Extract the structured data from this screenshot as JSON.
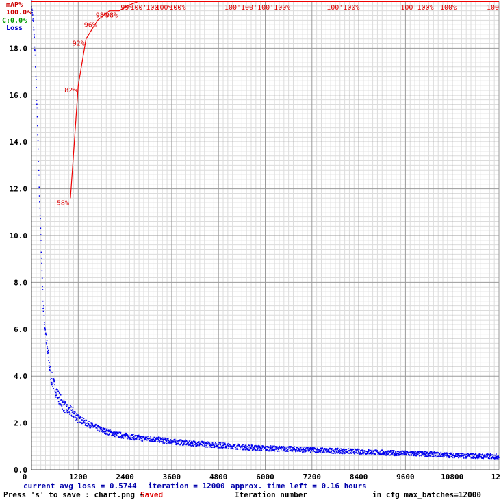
{
  "chart_data": {
    "type": "line",
    "xlim": [
      0,
      12000
    ],
    "ylim": [
      0,
      20
    ],
    "x_ticks": [
      "0",
      "1200",
      "2400",
      "3600",
      "4800",
      "6000",
      "7200",
      "8400",
      "9600",
      "10800",
      "12"
    ],
    "y_ticks": [
      "0.0",
      "2.0",
      "4.0",
      "6.0",
      "8.0",
      "10.0",
      "12.0",
      "14.0",
      "16.0",
      "18.0"
    ],
    "legend": {
      "map": "mAP%",
      "map_value": "100.0%",
      "c": "C:0.0%",
      "loss": "Loss"
    },
    "xlabel": "Iteration number",
    "grid": true,
    "colors": {
      "loss": "#0000ee",
      "map": "#ee0000",
      "grid_major": "#9a9a9a",
      "grid_minor": "#dcdcdc"
    },
    "series": [
      {
        "name": "Loss",
        "kind": "scatter",
        "x": [
          0,
          50,
          100,
          150,
          200,
          250,
          300,
          400,
          500,
          600,
          700,
          800,
          900,
          1000,
          1100,
          1200,
          1400,
          1600,
          1800,
          2000,
          2200,
          2400,
          2800,
          3200,
          3600,
          4000,
          4400,
          4800,
          5200,
          5600,
          6000,
          6400,
          6800,
          7200,
          7600,
          8000,
          8400,
          8800,
          9200,
          9600,
          10000,
          10400,
          10800,
          11200,
          11600,
          12000
        ],
        "values": [
          20,
          19.0,
          17.5,
          15.0,
          12.0,
          9.5,
          7.0,
          5.2,
          4.0,
          3.5,
          3.1,
          2.8,
          2.6,
          2.5,
          2.4,
          2.2,
          2.0,
          1.85,
          1.7,
          1.6,
          1.5,
          1.45,
          1.35,
          1.3,
          1.2,
          1.15,
          1.1,
          1.05,
          1.0,
          0.95,
          0.92,
          0.9,
          0.88,
          0.85,
          0.82,
          0.8,
          0.78,
          0.75,
          0.72,
          0.7,
          0.68,
          0.65,
          0.62,
          0.6,
          0.58,
          0.57
        ]
      },
      {
        "name": "mAP%",
        "kind": "line",
        "x": [
          1000,
          1200,
          1400,
          1700,
          2000,
          2250,
          2450,
          2750,
          3100,
          3400,
          3750
        ],
        "values": [
          58,
          82,
          92,
          96,
          98,
          98,
          99,
          100,
          100,
          100,
          100
        ],
        "labels": [
          "58%",
          "82%",
          "92%",
          "96%",
          "98%",
          "98%",
          "99%",
          "100'",
          "100",
          "100%",
          "100%"
        ]
      }
    ],
    "map_top_labels": [
      {
        "x": 5800,
        "text": "100'100'100'100%"
      },
      {
        "x": 8000,
        "text": "100'100%"
      },
      {
        "x": 9900,
        "text": "100'100%"
      },
      {
        "x": 10700,
        "text": "100%"
      },
      {
        "x": 12000,
        "text": "100"
      }
    ]
  },
  "footer": {
    "current_avg_loss": "current avg loss = 0.5744",
    "iteration": "iteration = 12000",
    "time_left": "approx. time left = 0.16 hours",
    "press_save": "Press 's' to save : chart.png -",
    "saved": "Saved",
    "xlabel": "Iteration number",
    "max_batches": "in cfg max_batches=12000"
  }
}
